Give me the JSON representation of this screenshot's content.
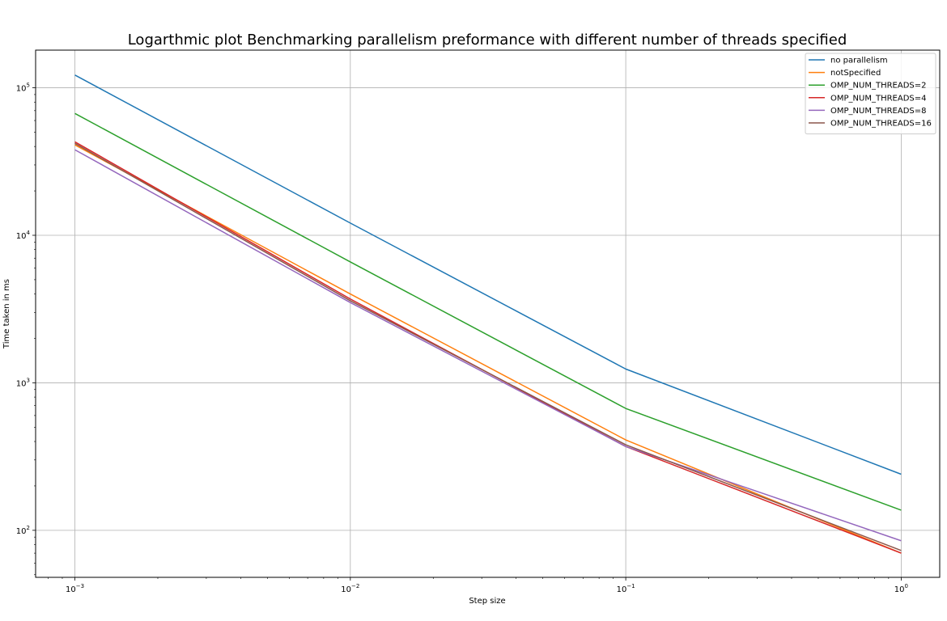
{
  "chart_data": {
    "type": "line",
    "title": "Logarthmic plot Benchmarking parallelism preformance with different number of threads specified",
    "xlabel": "Step size",
    "ylabel": "Time taken in ms",
    "xscale": "log",
    "yscale": "log",
    "xlim": [
      0.00072,
      1.38
    ],
    "ylim": [
      48,
      180000
    ],
    "grid": true,
    "legend_position": "top-right",
    "x": [
      0.001,
      0.01,
      0.1,
      1
    ],
    "x_ticks": [
      {
        "value": 0.001,
        "label_base": "10",
        "label_exp": "−3"
      },
      {
        "value": 0.01,
        "label_base": "10",
        "label_exp": "−2"
      },
      {
        "value": 0.1,
        "label_base": "10",
        "label_exp": "−1"
      },
      {
        "value": 1,
        "label_base": "10",
        "label_exp": "0"
      }
    ],
    "y_ticks": [
      {
        "value": 100,
        "label_base": "10",
        "label_exp": "2"
      },
      {
        "value": 1000,
        "label_base": "10",
        "label_exp": "3"
      },
      {
        "value": 10000,
        "label_base": "10",
        "label_exp": "4"
      },
      {
        "value": 100000,
        "label_base": "10",
        "label_exp": "5"
      }
    ],
    "series": [
      {
        "name": "no parallelism",
        "color": "#1f77b4",
        "values": [
          122000,
          12100,
          1240,
          240
        ]
      },
      {
        "name": "notSpecified",
        "color": "#ff7f0e",
        "values": [
          41000,
          4000,
          410,
          70
        ]
      },
      {
        "name": "OMP_NUM_THREADS=2",
        "color": "#2ca02c",
        "values": [
          67000,
          6600,
          670,
          137
        ]
      },
      {
        "name": "OMP_NUM_THREADS=4",
        "color": "#d62728",
        "values": [
          43000,
          3700,
          370,
          70
        ]
      },
      {
        "name": "OMP_NUM_THREADS=8",
        "color": "#9467bd",
        "values": [
          38000,
          3500,
          370,
          85
        ]
      },
      {
        "name": "OMP_NUM_THREADS=16",
        "color": "#8c564b",
        "values": [
          42000,
          3600,
          380,
          73
        ]
      }
    ]
  }
}
